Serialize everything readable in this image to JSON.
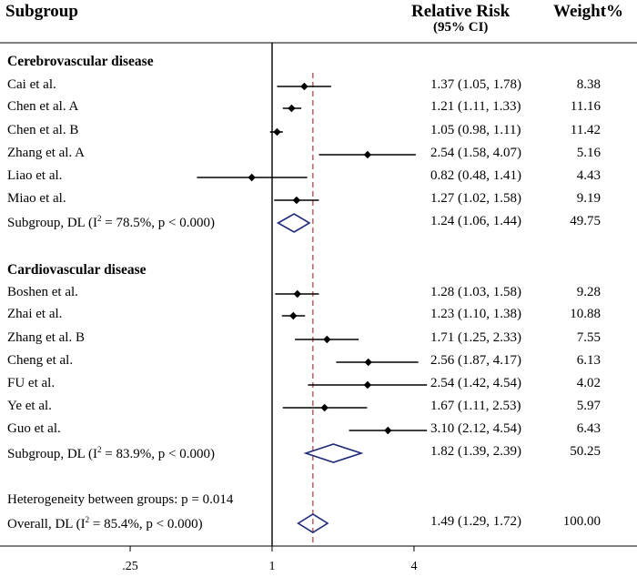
{
  "header": {
    "subgroup": "Subgroup",
    "rr_title": "Relative Risk",
    "rr_sub": "(95% CI)",
    "weight": "Weight%"
  },
  "groups": {
    "cerebro": "Cerebrovascular disease",
    "cardio": "Cardiovascular disease"
  },
  "summary_labels": {
    "cerebro": {
      "pre": "Subgroup, DL (I",
      "sup": "2",
      "post": " = 78.5%, p < 0.000)"
    },
    "cardio": {
      "pre": "Subgroup, DL (I",
      "sup": "2",
      "post": " = 83.9%, p < 0.000)"
    },
    "overall": {
      "pre": "Overall, DL (I",
      "sup": "2",
      "post": " = 85.4%, p < 0.000)"
    }
  },
  "heterogeneity": "Heterogeneity between groups: p = 0.014",
  "chart_data": {
    "type": "forest",
    "xscale": "log",
    "xlim": [
      0.14,
      10
    ],
    "ticks": [
      0.25,
      1,
      4
    ],
    "tick_labels": [
      ".25",
      "1",
      "4"
    ],
    "null_line": 1,
    "overall_line": 1.49,
    "rows": [
      {
        "label": "Cai et al.",
        "rr": 1.37,
        "lo": 1.05,
        "hi": 1.78,
        "ci_text": "1.37 (1.05, 1.78)",
        "weight": "8.38",
        "kind": "study"
      },
      {
        "label": "Chen et al. A",
        "rr": 1.21,
        "lo": 1.11,
        "hi": 1.33,
        "ci_text": "1.21 (1.11, 1.33)",
        "weight": "11.16",
        "kind": "study"
      },
      {
        "label": "Chen et al. B",
        "rr": 1.05,
        "lo": 0.98,
        "hi": 1.11,
        "ci_text": "1.05 (0.98, 1.11)",
        "weight": "11.42",
        "kind": "study"
      },
      {
        "label": "Zhang  et al. A",
        "rr": 2.54,
        "lo": 1.58,
        "hi": 4.07,
        "ci_text": "2.54 (1.58, 4.07)",
        "weight": "5.16",
        "kind": "study"
      },
      {
        "label": "Liao et al.",
        "rr": 0.82,
        "lo": 0.48,
        "hi": 1.41,
        "ci_text": "0.82 (0.48, 1.41)",
        "weight": "4.43",
        "kind": "study"
      },
      {
        "label": "Miao et al.",
        "rr": 1.27,
        "lo": 1.02,
        "hi": 1.58,
        "ci_text": "1.27 (1.02, 1.58)",
        "weight": "9.19",
        "kind": "study"
      },
      {
        "label": "",
        "rr": 1.24,
        "lo": 1.06,
        "hi": 1.44,
        "ci_text": "1.24 (1.06, 1.44)",
        "weight": "49.75",
        "kind": "subgroup"
      },
      {
        "label": "Boshen et al.",
        "rr": 1.28,
        "lo": 1.03,
        "hi": 1.58,
        "ci_text": "1.28 (1.03, 1.58)",
        "weight": "9.28",
        "kind": "study"
      },
      {
        "label": "Zhai et al.",
        "rr": 1.23,
        "lo": 1.1,
        "hi": 1.38,
        "ci_text": "1.23 (1.10, 1.38)",
        "weight": "10.88",
        "kind": "study"
      },
      {
        "label": "Zhang et al. B",
        "rr": 1.71,
        "lo": 1.25,
        "hi": 2.33,
        "ci_text": "1.71 (1.25, 2.33)",
        "weight": "7.55",
        "kind": "study"
      },
      {
        "label": "Cheng et al.",
        "rr": 2.56,
        "lo": 1.87,
        "hi": 4.17,
        "ci_text": "2.56 (1.87, 4.17)",
        "weight": "6.13",
        "kind": "study"
      },
      {
        "label": "FU et al.",
        "rr": 2.54,
        "lo": 1.42,
        "hi": 4.54,
        "ci_text": "2.54 (1.42, 4.54)",
        "weight": "4.02",
        "kind": "study"
      },
      {
        "label": "Ye et al.",
        "rr": 1.67,
        "lo": 1.11,
        "hi": 2.53,
        "ci_text": "1.67 (1.11, 2.53)",
        "weight": "5.97",
        "kind": "study"
      },
      {
        "label": "Guo et al.",
        "rr": 3.1,
        "lo": 2.12,
        "hi": 4.54,
        "ci_text": "3.10 (2.12, 4.54)",
        "weight": "6.43",
        "kind": "study"
      },
      {
        "label": "",
        "rr": 1.82,
        "lo": 1.39,
        "hi": 2.39,
        "ci_text": "1.82 (1.39, 2.39)",
        "weight": "50.25",
        "kind": "subgroup"
      },
      {
        "label": "",
        "rr": 1.49,
        "lo": 1.29,
        "hi": 1.72,
        "ci_text": "1.49 (1.29, 1.72)",
        "weight": "100.00",
        "kind": "overall"
      }
    ]
  }
}
